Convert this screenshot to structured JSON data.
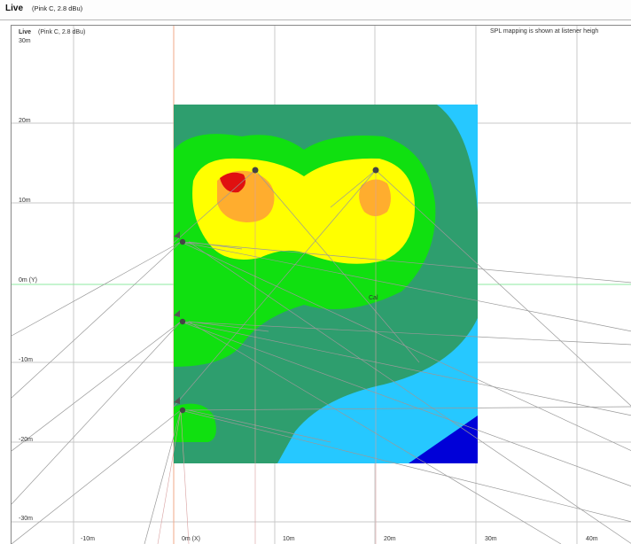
{
  "window": {
    "title": "Live",
    "subtitle": "(Pink C, 2.8 dBu)"
  },
  "plot": {
    "title": "Live",
    "subtitle": "(Pink C, 2.8 dBu)",
    "note": "SPL mapping is shown at listener heigh",
    "cal_label": "Cal",
    "y_ticks": [
      "30m",
      "20m",
      "10m",
      "0m (Y)",
      "-10m",
      "-20m",
      "-30m"
    ],
    "x_ticks": [
      "-10m",
      "0m (X)",
      "10m",
      "20m",
      "30m",
      "40m"
    ],
    "colors": {
      "light_blue": "#26c8ff",
      "teal": "#2e9e6e",
      "green": "#10e010",
      "yellow": "#ffff00",
      "orange": "#ffad2e",
      "red": "#e01010",
      "blue": "#0000d8"
    },
    "speaker_icons": [
      "speaker-icon",
      "speaker-icon",
      "speaker-icon",
      "speaker-icon",
      "speaker-icon"
    ]
  }
}
